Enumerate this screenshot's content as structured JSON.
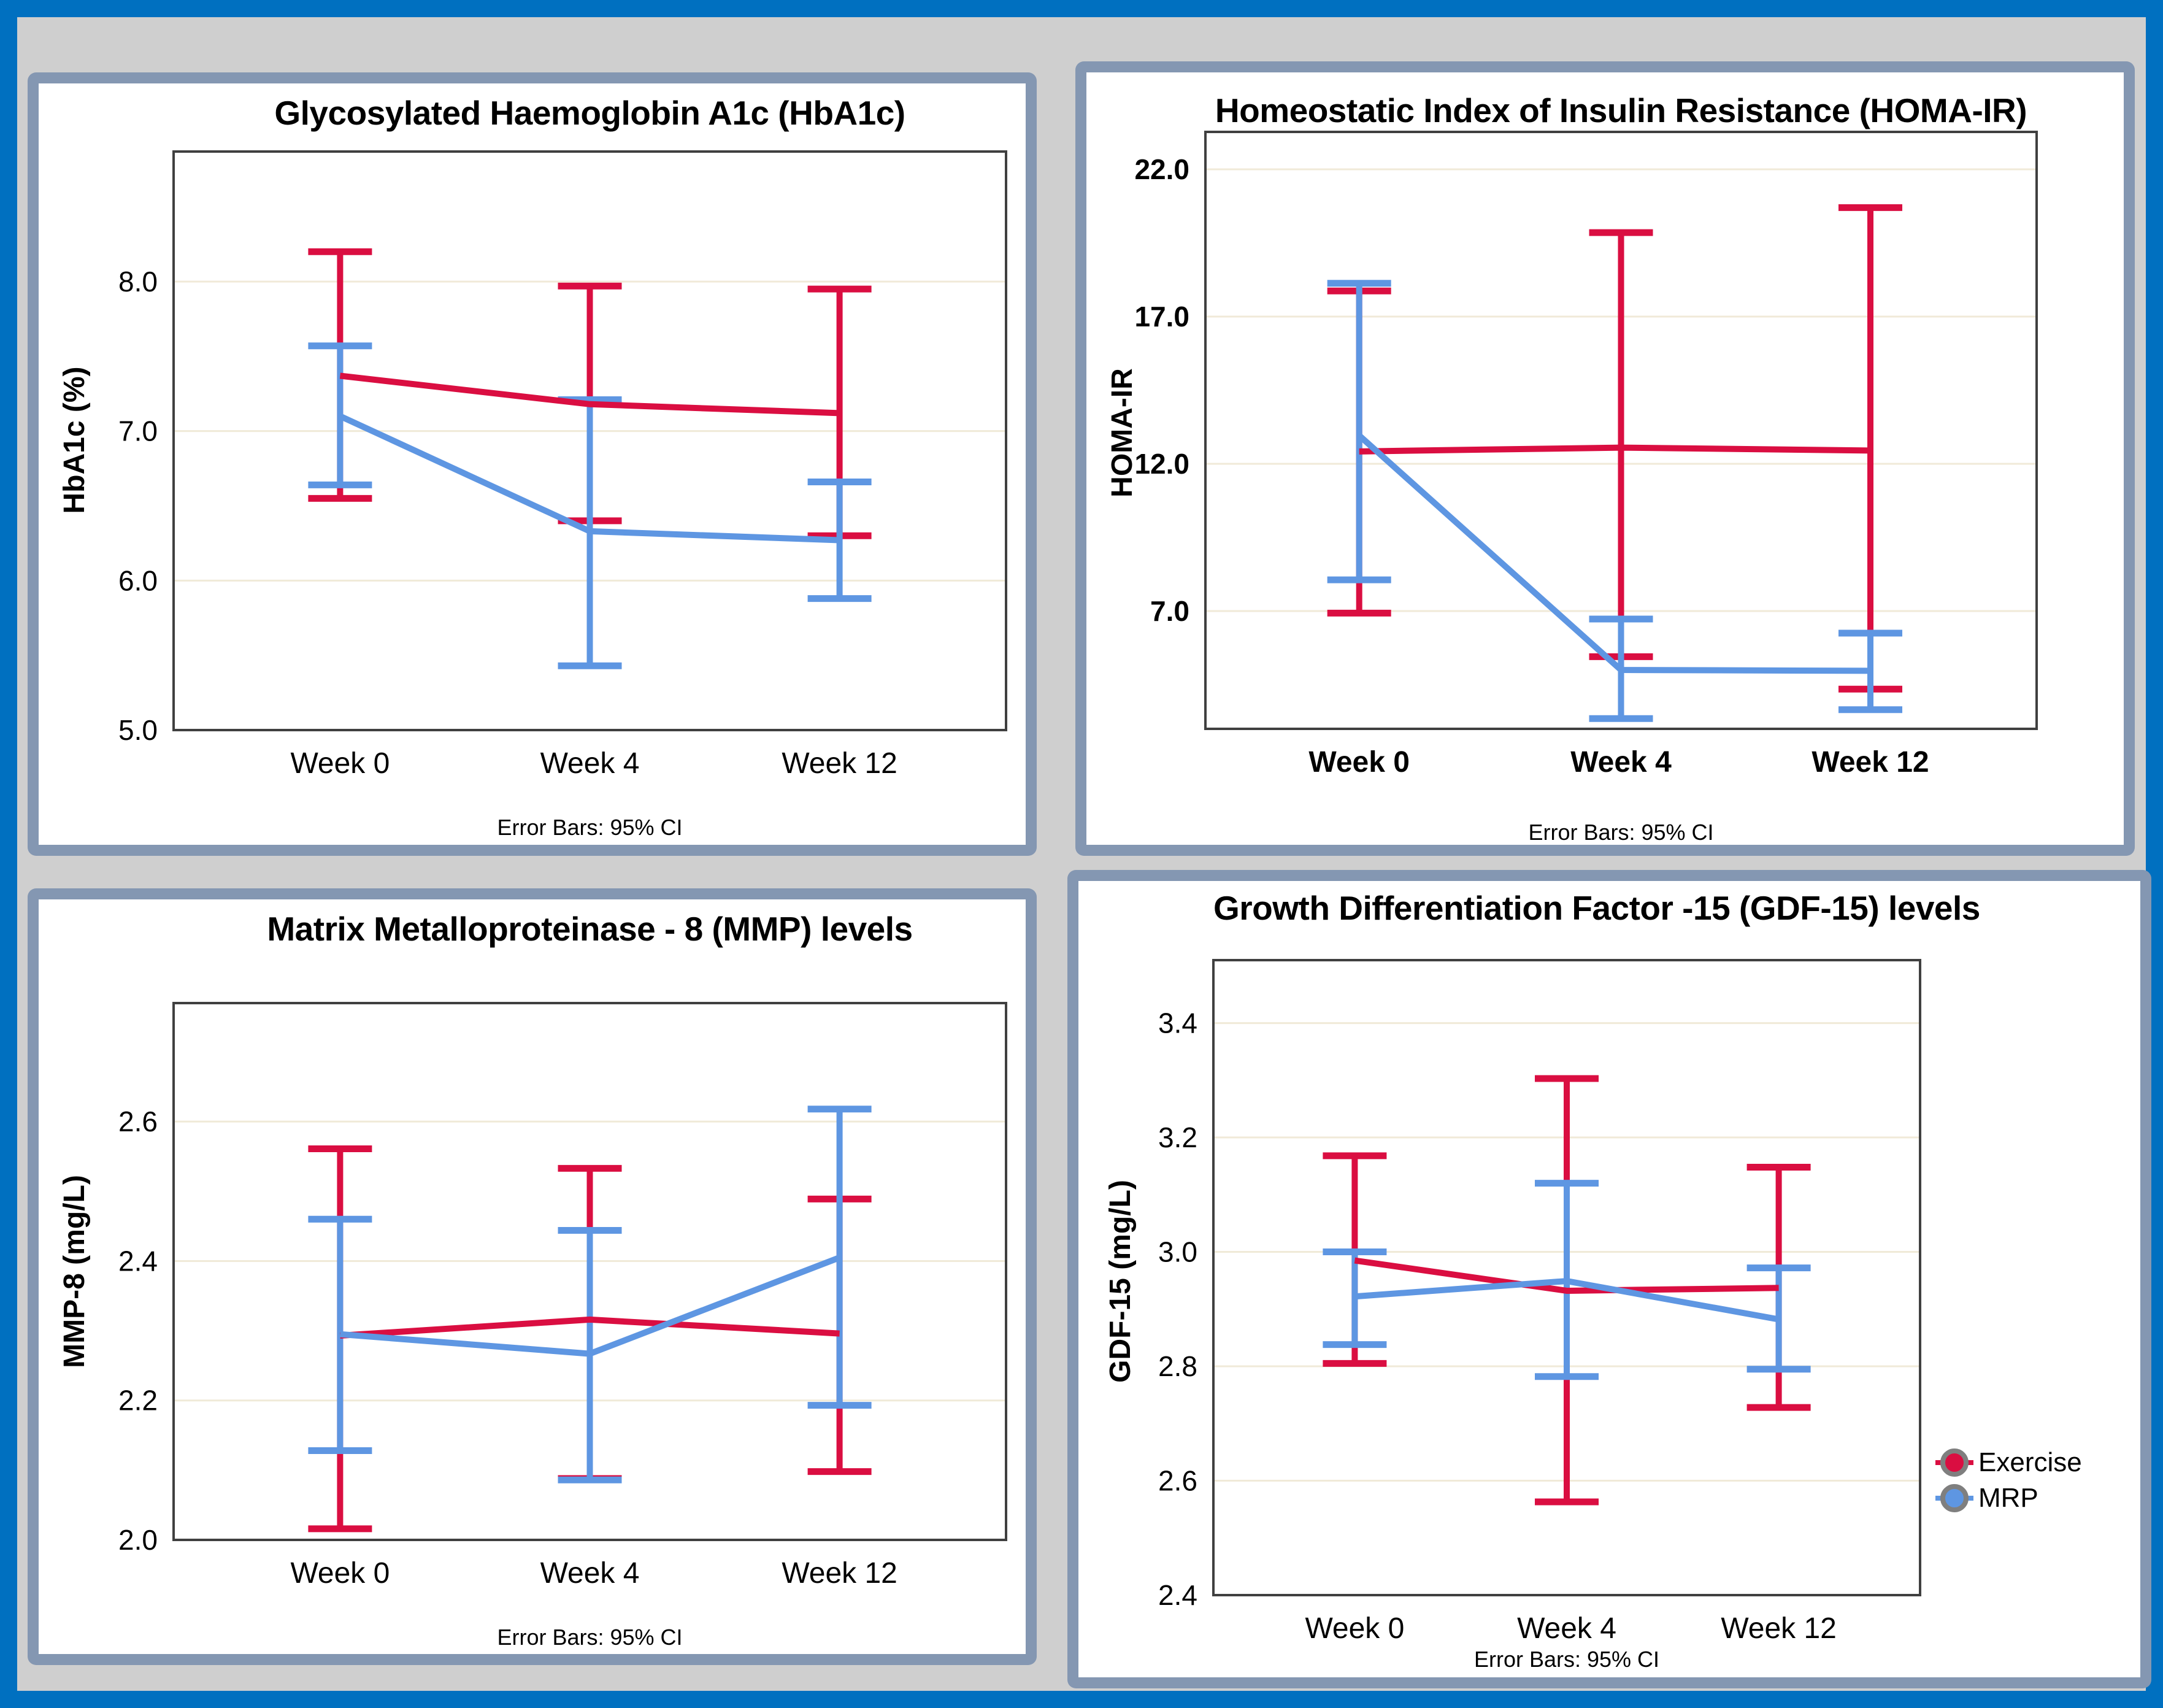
{
  "figure": {
    "categories": [
      "Week 0",
      "Week 4",
      "Week 12"
    ],
    "caption": "Error Bars: 95% CI",
    "colors": {
      "exercise": "#DA0E41",
      "mrp": "#5E96E2",
      "grid": "#F0EAD8",
      "frame": "#404040",
      "panel_border": "#8497B2",
      "outer_border": "#0070C0",
      "canvas": "#CFCFCF"
    },
    "legend": {
      "items": [
        {
          "label": "Exercise",
          "series": "exercise",
          "color": "#DA0E41"
        },
        {
          "label": "MRP",
          "series": "mrp",
          "color": "#5E96E2"
        }
      ]
    }
  },
  "chart_data": [
    {
      "id": "hba1c",
      "type": "line",
      "title": "Glycosylated Haemoglobin A1c (HbA1c)",
      "ylabel": "HbA1c (%)",
      "caption": "Error Bars: 95% CI",
      "categories": [
        "Week 0",
        "Week 4",
        "Week 12"
      ],
      "x_positions": [
        0.2,
        0.5,
        0.8
      ],
      "yticks": [
        5.0,
        6.0,
        7.0,
        8.0
      ],
      "ytick_labels": [
        "5.0",
        "6.0",
        "7.0",
        "8.0"
      ],
      "ylim": [
        5.0,
        8.87
      ],
      "grid": true,
      "legend_position": "none",
      "error_bars": "95% CI",
      "series": [
        {
          "name": "Exercise",
          "color": "#DA0E41",
          "means": [
            7.37,
            7.18,
            7.12
          ],
          "ci_low": [
            6.55,
            6.4,
            6.3
          ],
          "ci_high": [
            8.2,
            7.97,
            7.95
          ]
        },
        {
          "name": "MRP",
          "color": "#5E96E2",
          "means": [
            7.1,
            6.33,
            6.27
          ],
          "ci_low": [
            6.64,
            5.43,
            5.88
          ],
          "ci_high": [
            7.57,
            7.21,
            6.66
          ]
        }
      ]
    },
    {
      "id": "homa-ir",
      "type": "line",
      "title": "Homeostatic Index of Insulin Resistance (HOMA-IR)",
      "ylabel": "HOMA-IR",
      "caption": "Error Bars: 95% CI",
      "categories": [
        "Week 0",
        "Week 4",
        "Week 12"
      ],
      "x_positions": [
        0.185,
        0.5,
        0.8
      ],
      "yticks": [
        7.0,
        12.0,
        17.0,
        22.0
      ],
      "ytick_labels": [
        "7.0",
        "12.0",
        "17.0",
        "22.0"
      ],
      "ylim": [
        3.0,
        23.27
      ],
      "grid": true,
      "legend_position": "none",
      "error_bars": "95% CI",
      "series": [
        {
          "name": "Exercise",
          "color": "#DA0E41",
          "means": [
            12.42,
            12.55,
            12.45
          ],
          "ci_low": [
            6.93,
            5.45,
            4.35
          ],
          "ci_high": [
            17.87,
            19.85,
            20.7
          ]
        },
        {
          "name": "MRP",
          "color": "#5E96E2",
          "means": [
            12.96,
            5.0,
            4.97
          ],
          "ci_low": [
            8.06,
            3.35,
            3.65
          ],
          "ci_high": [
            18.13,
            6.73,
            6.25
          ]
        }
      ]
    },
    {
      "id": "mmp8",
      "type": "line",
      "title": "Matrix Metalloproteinase - 8 (MMP) levels",
      "ylabel": "MMP-8 (mg/L)",
      "caption": "Error Bars: 95% CI",
      "categories": [
        "Week 0",
        "Week 4",
        "Week 12"
      ],
      "x_positions": [
        0.2,
        0.5,
        0.8
      ],
      "yticks": [
        2.0,
        2.2,
        2.4,
        2.6
      ],
      "ytick_labels": [
        "2.0",
        "2.2",
        "2.4",
        "2.6"
      ],
      "ylim": [
        2.0,
        2.77
      ],
      "grid": true,
      "legend_position": "none",
      "error_bars": "95% CI",
      "series": [
        {
          "name": "Exercise",
          "color": "#DA0E41",
          "means": [
            2.293,
            2.316,
            2.296
          ],
          "ci_low": [
            2.016,
            2.088,
            2.098
          ],
          "ci_high": [
            2.561,
            2.533,
            2.489
          ]
        },
        {
          "name": "MRP",
          "color": "#5E96E2",
          "means": [
            2.295,
            2.267,
            2.405
          ],
          "ci_low": [
            2.128,
            2.086,
            2.193
          ],
          "ci_high": [
            2.46,
            2.444,
            2.618
          ]
        }
      ]
    },
    {
      "id": "gdf15",
      "type": "line",
      "title": "Growth Differentiation Factor -15 (GDF-15) levels",
      "ylabel": "GDF-15 (mg/L)",
      "caption": "Error Bars: 95% CI",
      "categories": [
        "Week 0",
        "Week 4",
        "Week 12"
      ],
      "x_positions": [
        0.2,
        0.5,
        0.8
      ],
      "yticks": [
        2.4,
        2.6,
        2.8,
        3.0,
        3.2,
        3.4
      ],
      "ytick_labels": [
        "2.4",
        "2.6",
        "2.8",
        "3.0",
        "3.2",
        "3.4"
      ],
      "ylim": [
        2.4,
        3.51
      ],
      "grid": true,
      "legend_position": "right",
      "error_bars": "95% CI",
      "series": [
        {
          "name": "Exercise",
          "color": "#DA0E41",
          "means": [
            2.985,
            2.932,
            2.937
          ],
          "ci_low": [
            2.805,
            2.563,
            2.728
          ],
          "ci_high": [
            3.168,
            3.303,
            3.148
          ]
        },
        {
          "name": "MRP",
          "color": "#5E96E2",
          "means": [
            2.922,
            2.949,
            2.882
          ],
          "ci_low": [
            2.838,
            2.782,
            2.795
          ],
          "ci_high": [
            3.0,
            3.12,
            2.972
          ]
        }
      ]
    }
  ]
}
